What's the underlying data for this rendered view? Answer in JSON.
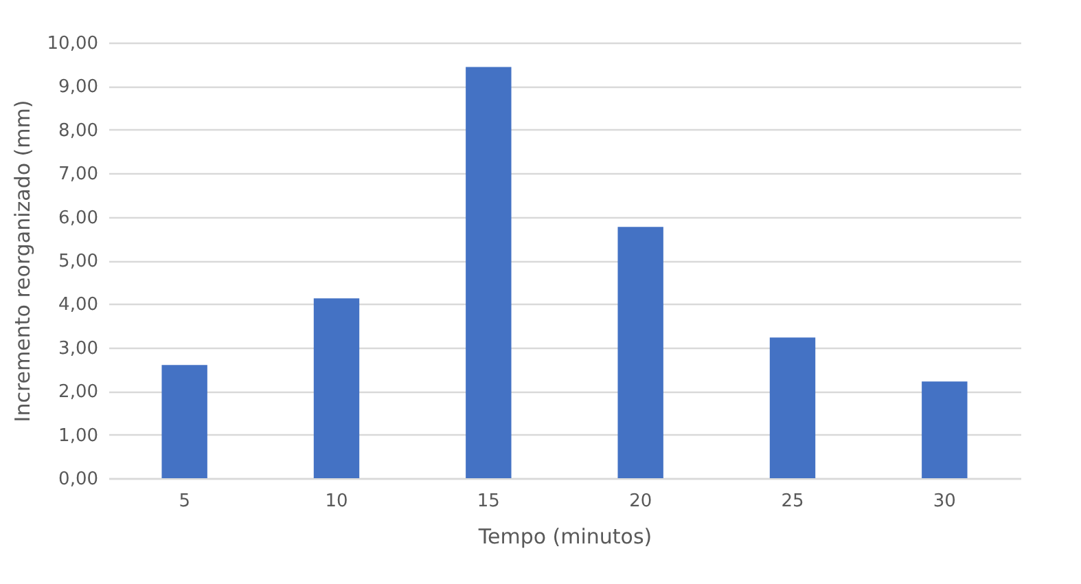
{
  "chart_data": {
    "type": "bar",
    "xlabel": "Tempo (minutos)",
    "ylabel": "Incremento reorganizado (mm)",
    "categories": [
      "5",
      "10",
      "15",
      "20",
      "25",
      "30"
    ],
    "values": [
      2.6,
      4.13,
      9.44,
      5.77,
      3.23,
      2.22
    ],
    "color": "#4472c4",
    "ylim": [
      0,
      10
    ],
    "yticks": [
      {
        "value": 0,
        "label": "0,00"
      },
      {
        "value": 1,
        "label": "1,00"
      },
      {
        "value": 2,
        "label": "2,00"
      },
      {
        "value": 3,
        "label": "3,00"
      },
      {
        "value": 4,
        "label": "4,00"
      },
      {
        "value": 5,
        "label": "5,00"
      },
      {
        "value": 6,
        "label": "6,00"
      },
      {
        "value": 7,
        "label": "7,00"
      },
      {
        "value": 8,
        "label": "8,00"
      },
      {
        "value": 9,
        "label": "9,00"
      },
      {
        "value": 10,
        "label": "10,00"
      }
    ],
    "grid": "y"
  }
}
